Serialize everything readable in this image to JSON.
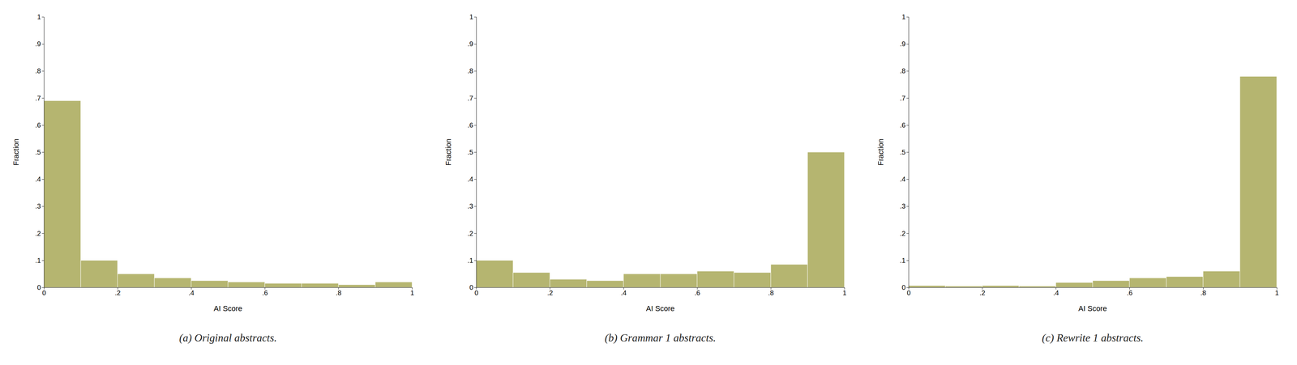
{
  "chart_data": [
    {
      "type": "histogram",
      "title": "(a) Original abstracts.",
      "xlabel": "AI Score",
      "ylabel": "Fraction",
      "color": "#b5b570",
      "bins": [
        0,
        0.1,
        0.2,
        0.3,
        0.4,
        0.5,
        0.6,
        0.7,
        0.8,
        0.9,
        1.0
      ],
      "values": [
        0.69,
        0.1,
        0.05,
        0.035,
        0.025,
        0.02,
        0.015,
        0.015,
        0.01,
        0.02
      ],
      "xlim": [
        0,
        1
      ],
      "ylim": [
        0,
        1.0
      ],
      "xticks": [
        0,
        {
          "value": 0.2,
          "label": ".2"
        },
        {
          "value": 0.4,
          "label": ".4"
        },
        {
          "value": 0.6,
          "label": ".6"
        },
        {
          "value": 0.8,
          "label": ".8"
        },
        1
      ],
      "yticks": [
        0,
        {
          "value": 0.1,
          "label": ".1"
        },
        {
          "value": 0.2,
          "label": ".2"
        },
        {
          "value": 0.3,
          "label": ".3"
        },
        {
          "value": 0.4,
          "label": ".4"
        },
        {
          "value": 0.5,
          "label": ".5"
        },
        {
          "value": 0.6,
          "label": ".6"
        },
        {
          "value": 0.7,
          "label": ".7"
        },
        {
          "value": 0.8,
          "label": ".8"
        },
        {
          "value": 0.9,
          "label": ".9"
        },
        1
      ],
      "grid": false
    },
    {
      "type": "histogram",
      "title": "(b) Grammar 1 abstracts.",
      "xlabel": "AI Score",
      "ylabel": "Fraction",
      "color": "#b5b570",
      "bins": [
        0,
        0.1,
        0.2,
        0.3,
        0.4,
        0.5,
        0.6,
        0.7,
        0.8,
        0.9,
        1.0
      ],
      "values": [
        0.1,
        0.055,
        0.03,
        0.025,
        0.05,
        0.05,
        0.06,
        0.055,
        0.085,
        0.5
      ],
      "xlim": [
        0,
        1
      ],
      "ylim": [
        0,
        1.0
      ],
      "xticks": [
        0,
        {
          "value": 0.2,
          "label": ".2"
        },
        {
          "value": 0.4,
          "label": ".4"
        },
        {
          "value": 0.6,
          "label": ".6"
        },
        {
          "value": 0.8,
          "label": ".8"
        },
        1
      ],
      "yticks": [
        0,
        {
          "value": 0.1,
          "label": ".1"
        },
        {
          "value": 0.2,
          "label": ".2"
        },
        {
          "value": 0.3,
          "label": ".3"
        },
        {
          "value": 0.4,
          "label": ".4"
        },
        {
          "value": 0.5,
          "label": ".5"
        },
        {
          "value": 0.6,
          "label": ".6"
        },
        {
          "value": 0.7,
          "label": ".7"
        },
        {
          "value": 0.8,
          "label": ".8"
        },
        {
          "value": 0.9,
          "label": ".9"
        },
        1
      ],
      "grid": false
    },
    {
      "type": "histogram",
      "title": "(c) Rewrite 1 abstracts.",
      "xlabel": "AI Score",
      "ylabel": "Fraction",
      "color": "#b5b570",
      "bins": [
        0,
        0.1,
        0.2,
        0.3,
        0.4,
        0.5,
        0.6,
        0.7,
        0.8,
        0.9,
        1.0
      ],
      "values": [
        0.007,
        0.005,
        0.007,
        0.005,
        0.018,
        0.025,
        0.035,
        0.04,
        0.06,
        0.78
      ],
      "xlim": [
        0,
        1
      ],
      "ylim": [
        0,
        1.0
      ],
      "xticks": [
        0,
        {
          "value": 0.2,
          "label": ".2"
        },
        {
          "value": 0.4,
          "label": ".4"
        },
        {
          "value": 0.6,
          "label": ".6"
        },
        {
          "value": 0.8,
          "label": ".8"
        },
        1
      ],
      "yticks": [
        0,
        {
          "value": 0.1,
          "label": ".1"
        },
        {
          "value": 0.2,
          "label": ".2"
        },
        {
          "value": 0.3,
          "label": ".3"
        },
        {
          "value": 0.4,
          "label": ".4"
        },
        {
          "value": 0.5,
          "label": ".5"
        },
        {
          "value": 0.6,
          "label": ".6"
        },
        {
          "value": 0.7,
          "label": ".7"
        },
        {
          "value": 0.8,
          "label": ".8"
        },
        {
          "value": 0.9,
          "label": ".9"
        },
        1
      ],
      "grid": false
    }
  ]
}
